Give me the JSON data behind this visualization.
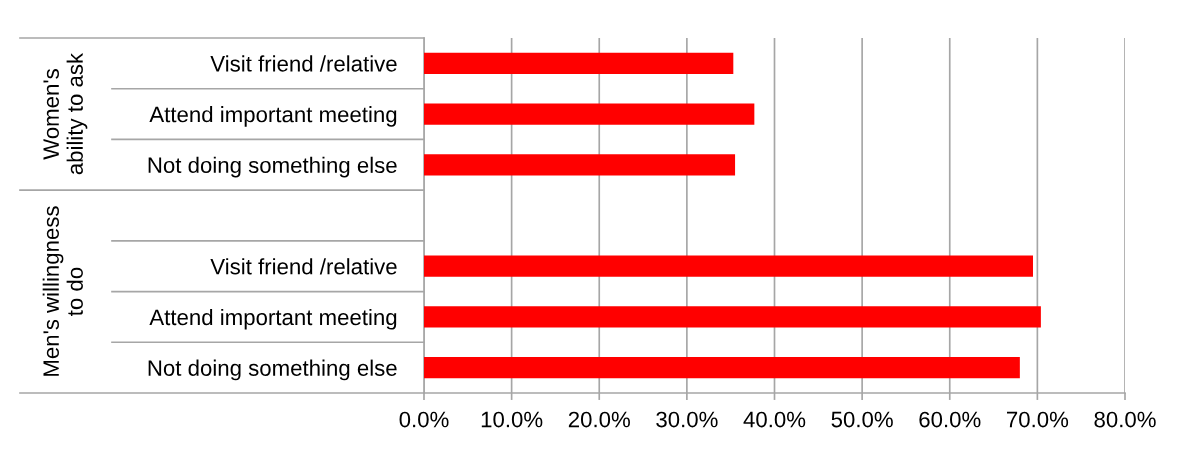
{
  "chart_data": {
    "type": "bar",
    "orientation": "horizontal",
    "categories": [
      "Visit friend /relative",
      "Attend important meeting",
      "Not doing something else",
      null,
      "Visit friend /relative",
      "Attend important meeting",
      "Not doing something else"
    ],
    "values": [
      35.3,
      37.7,
      35.5,
      null,
      69.5,
      70.4,
      68.0
    ],
    "color": "#ff0000",
    "xlim": [
      0,
      80
    ],
    "xticks": [
      {
        "value": 0,
        "label": "0.0%"
      },
      {
        "value": 10,
        "label": "10.0%"
      },
      {
        "value": 20,
        "label": "20.0%"
      },
      {
        "value": 30,
        "label": "30.0%"
      },
      {
        "value": 40,
        "label": "40.0%"
      },
      {
        "value": 50,
        "label": "50.0%"
      },
      {
        "value": 60,
        "label": "60.0%"
      },
      {
        "value": 70,
        "label": "70.0%"
      },
      {
        "value": 80,
        "label": "80.0%"
      }
    ],
    "grid": "x",
    "annotations": [
      "Women's\nability to ask",
      "Men's willingness\nto do"
    ]
  }
}
